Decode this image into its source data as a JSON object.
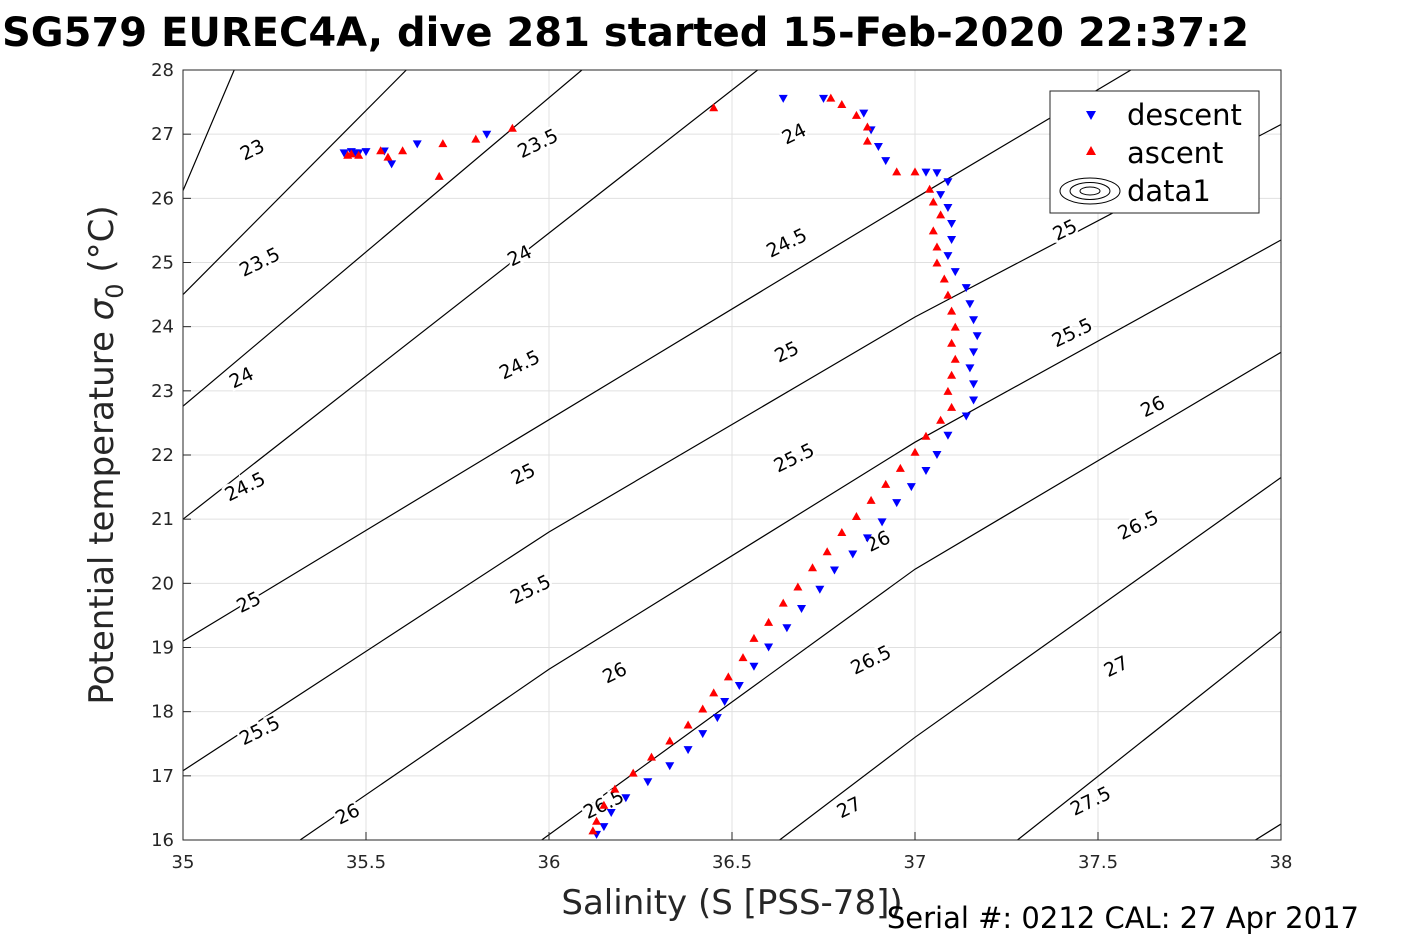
{
  "title": "SG579 EUREC4A, dive 281 started 15-Feb-2020 22:37:2",
  "footer": "Serial #: 0212  CAL: 27 Apr 2017",
  "colors": {
    "descent": "#0000ff",
    "ascent": "#ff0000",
    "contour": "#000000",
    "grid": "#e0e0e0"
  },
  "chart_data": {
    "type": "scatter",
    "title": "SG579 EUREC4A, dive 281 started 15-Feb-2020 22:37:2",
    "xlabel": "Salinity (S [PSS-78])",
    "ylabel_main": "Potential temperature ",
    "ylabel_sym": "σ",
    "ylabel_sub": "0",
    "ylabel_tail": " (°C)",
    "xlim": [
      35,
      38
    ],
    "ylim": [
      16,
      28
    ],
    "xticks": [
      "35",
      "35.5",
      "36",
      "36.5",
      "37",
      "37.5",
      "38"
    ],
    "yticks": [
      "16",
      "17",
      "18",
      "19",
      "20",
      "21",
      "22",
      "23",
      "24",
      "25",
      "26",
      "27",
      "28"
    ],
    "grid": true,
    "legend_position": "top-right",
    "legend": [
      "descent",
      "ascent",
      "data1"
    ],
    "contours": {
      "levels": [
        23,
        23.5,
        24,
        24.5,
        25,
        25.5,
        26,
        26.5,
        27,
        27.5
      ],
      "lines": [
        {
          "points": [
            [
              35.0,
              26.12
            ],
            [
              35.14,
              28.0
            ]
          ]
        },
        {
          "points": [
            [
              35.0,
              24.5
            ],
            [
              35.61,
              28.0
            ]
          ]
        },
        {
          "points": [
            [
              35.0,
              22.76
            ],
            [
              36.09,
              28.0
            ]
          ]
        },
        {
          "points": [
            [
              35.0,
              21.0
            ],
            [
              36.57,
              28.0
            ]
          ]
        },
        {
          "points": [
            [
              35.0,
              19.1
            ],
            [
              37.0,
              26.0
            ],
            [
              37.59,
              28.0
            ]
          ]
        },
        {
          "points": [
            [
              35.0,
              17.08
            ],
            [
              36.0,
              20.8
            ],
            [
              37.0,
              24.15
            ],
            [
              38.0,
              27.15
            ]
          ]
        },
        {
          "points": [
            [
              35.32,
              16.0
            ],
            [
              36.0,
              18.66
            ],
            [
              37.0,
              22.2
            ],
            [
              38.0,
              25.35
            ]
          ]
        },
        {
          "points": [
            [
              35.98,
              16.0
            ],
            [
              37.0,
              20.22
            ],
            [
              38.0,
              23.6
            ]
          ]
        },
        {
          "points": [
            [
              36.63,
              16.0
            ],
            [
              37.0,
              17.6
            ],
            [
              38.0,
              21.65
            ]
          ]
        },
        {
          "points": [
            [
              37.28,
              16.0
            ],
            [
              38.0,
              19.25
            ]
          ]
        },
        {
          "points": [
            [
              37.93,
              16.0
            ],
            [
              38.0,
              16.25
            ]
          ]
        }
      ],
      "labels": [
        {
          "text": "23",
          "x": 35.19,
          "y": 26.75
        },
        {
          "text": "23.5",
          "x": 35.21,
          "y": 25.0
        },
        {
          "text": "23.5",
          "x": 35.97,
          "y": 26.85
        },
        {
          "text": "24",
          "x": 35.16,
          "y": 23.2
        },
        {
          "text": "24",
          "x": 35.92,
          "y": 25.1
        },
        {
          "text": "24",
          "x": 36.67,
          "y": 27.0
        },
        {
          "text": "24.5",
          "x": 35.17,
          "y": 21.5
        },
        {
          "text": "24.5",
          "x": 35.92,
          "y": 23.4
        },
        {
          "text": "24.5",
          "x": 36.65,
          "y": 25.3
        },
        {
          "text": "25",
          "x": 35.18,
          "y": 19.7
        },
        {
          "text": "25",
          "x": 35.93,
          "y": 21.7
        },
        {
          "text": "25",
          "x": 36.65,
          "y": 23.6
        },
        {
          "text": "25",
          "x": 37.41,
          "y": 25.5
        },
        {
          "text": "25.5",
          "x": 35.21,
          "y": 17.7
        },
        {
          "text": "25.5",
          "x": 35.95,
          "y": 19.9
        },
        {
          "text": "25.5",
          "x": 36.67,
          "y": 21.95
        },
        {
          "text": "25.5",
          "x": 37.43,
          "y": 23.9
        },
        {
          "text": "26",
          "x": 35.45,
          "y": 16.4
        },
        {
          "text": "26",
          "x": 36.18,
          "y": 18.6
        },
        {
          "text": "26",
          "x": 36.9,
          "y": 20.65
        },
        {
          "text": "26",
          "x": 37.65,
          "y": 22.75
        },
        {
          "text": "26.5",
          "x": 36.15,
          "y": 16.55
        },
        {
          "text": "26.5",
          "x": 36.88,
          "y": 18.8
        },
        {
          "text": "26.5",
          "x": 37.61,
          "y": 20.9
        },
        {
          "text": "27",
          "x": 36.82,
          "y": 16.5
        },
        {
          "text": "27",
          "x": 37.55,
          "y": 18.7
        },
        {
          "text": "27.5",
          "x": 37.48,
          "y": 16.6
        }
      ]
    },
    "series": [
      {
        "name": "descent",
        "marker": "triangle-down",
        "points": [
          [
            35.44,
            26.7
          ],
          [
            35.46,
            26.72
          ],
          [
            35.47,
            26.7
          ],
          [
            35.48,
            26.7
          ],
          [
            35.5,
            26.72
          ],
          [
            35.55,
            26.73
          ],
          [
            35.57,
            26.53
          ],
          [
            35.64,
            26.84
          ],
          [
            35.83,
            26.99
          ],
          [
            36.64,
            27.55
          ],
          [
            36.75,
            27.55
          ],
          [
            36.86,
            27.32
          ],
          [
            36.88,
            27.06
          ],
          [
            36.9,
            26.8
          ],
          [
            36.92,
            26.58
          ],
          [
            37.03,
            26.4
          ],
          [
            37.06,
            26.39
          ],
          [
            37.09,
            26.25
          ],
          [
            37.07,
            26.05
          ],
          [
            37.09,
            25.85
          ],
          [
            37.1,
            25.6
          ],
          [
            37.1,
            25.35
          ],
          [
            37.09,
            25.1
          ],
          [
            37.11,
            24.85
          ],
          [
            37.14,
            24.6
          ],
          [
            37.15,
            24.35
          ],
          [
            37.16,
            24.1
          ],
          [
            37.17,
            23.85
          ],
          [
            37.16,
            23.6
          ],
          [
            37.15,
            23.35
          ],
          [
            37.16,
            23.1
          ],
          [
            37.16,
            22.85
          ],
          [
            37.14,
            22.6
          ],
          [
            37.09,
            22.3
          ],
          [
            37.06,
            22.0
          ],
          [
            37.03,
            21.75
          ],
          [
            36.99,
            21.5
          ],
          [
            36.95,
            21.25
          ],
          [
            36.91,
            20.95
          ],
          [
            36.87,
            20.7
          ],
          [
            36.83,
            20.45
          ],
          [
            36.78,
            20.2
          ],
          [
            36.74,
            19.9
          ],
          [
            36.69,
            19.6
          ],
          [
            36.65,
            19.3
          ],
          [
            36.6,
            19.0
          ],
          [
            36.56,
            18.7
          ],
          [
            36.52,
            18.4
          ],
          [
            36.48,
            18.15
          ],
          [
            36.46,
            17.9
          ],
          [
            36.42,
            17.65
          ],
          [
            36.38,
            17.4
          ],
          [
            36.33,
            17.15
          ],
          [
            36.27,
            16.9
          ],
          [
            36.21,
            16.65
          ],
          [
            36.17,
            16.42
          ],
          [
            36.15,
            16.2
          ],
          [
            36.13,
            16.08
          ]
        ]
      },
      {
        "name": "ascent",
        "marker": "triangle-up",
        "points": [
          [
            35.45,
            26.68
          ],
          [
            35.46,
            26.7
          ],
          [
            35.48,
            26.68
          ],
          [
            35.54,
            26.75
          ],
          [
            35.56,
            26.65
          ],
          [
            35.6,
            26.75
          ],
          [
            35.7,
            26.35
          ],
          [
            35.71,
            26.86
          ],
          [
            35.8,
            26.93
          ],
          [
            35.9,
            27.1
          ],
          [
            36.45,
            27.42
          ],
          [
            36.77,
            27.57
          ],
          [
            36.8,
            27.47
          ],
          [
            36.84,
            27.3
          ],
          [
            36.87,
            27.12
          ],
          [
            36.87,
            26.9
          ],
          [
            36.95,
            26.42
          ],
          [
            37.0,
            26.42
          ],
          [
            37.04,
            26.15
          ],
          [
            37.05,
            25.95
          ],
          [
            37.07,
            25.75
          ],
          [
            37.05,
            25.5
          ],
          [
            37.06,
            25.25
          ],
          [
            37.06,
            25.0
          ],
          [
            37.08,
            24.75
          ],
          [
            37.09,
            24.5
          ],
          [
            37.1,
            24.25
          ],
          [
            37.11,
            24.0
          ],
          [
            37.1,
            23.75
          ],
          [
            37.11,
            23.5
          ],
          [
            37.1,
            23.25
          ],
          [
            37.09,
            23.0
          ],
          [
            37.1,
            22.75
          ],
          [
            37.07,
            22.55
          ],
          [
            37.03,
            22.3
          ],
          [
            37.0,
            22.05
          ],
          [
            36.96,
            21.8
          ],
          [
            36.92,
            21.55
          ],
          [
            36.88,
            21.3
          ],
          [
            36.84,
            21.05
          ],
          [
            36.8,
            20.8
          ],
          [
            36.76,
            20.5
          ],
          [
            36.72,
            20.25
          ],
          [
            36.68,
            19.95
          ],
          [
            36.64,
            19.7
          ],
          [
            36.6,
            19.4
          ],
          [
            36.56,
            19.15
          ],
          [
            36.53,
            18.85
          ],
          [
            36.49,
            18.55
          ],
          [
            36.45,
            18.3
          ],
          [
            36.42,
            18.05
          ],
          [
            36.38,
            17.8
          ],
          [
            36.33,
            17.55
          ],
          [
            36.28,
            17.3
          ],
          [
            36.23,
            17.05
          ],
          [
            36.18,
            16.8
          ],
          [
            36.15,
            16.55
          ],
          [
            36.13,
            16.3
          ],
          [
            36.12,
            16.15
          ]
        ]
      }
    ]
  }
}
